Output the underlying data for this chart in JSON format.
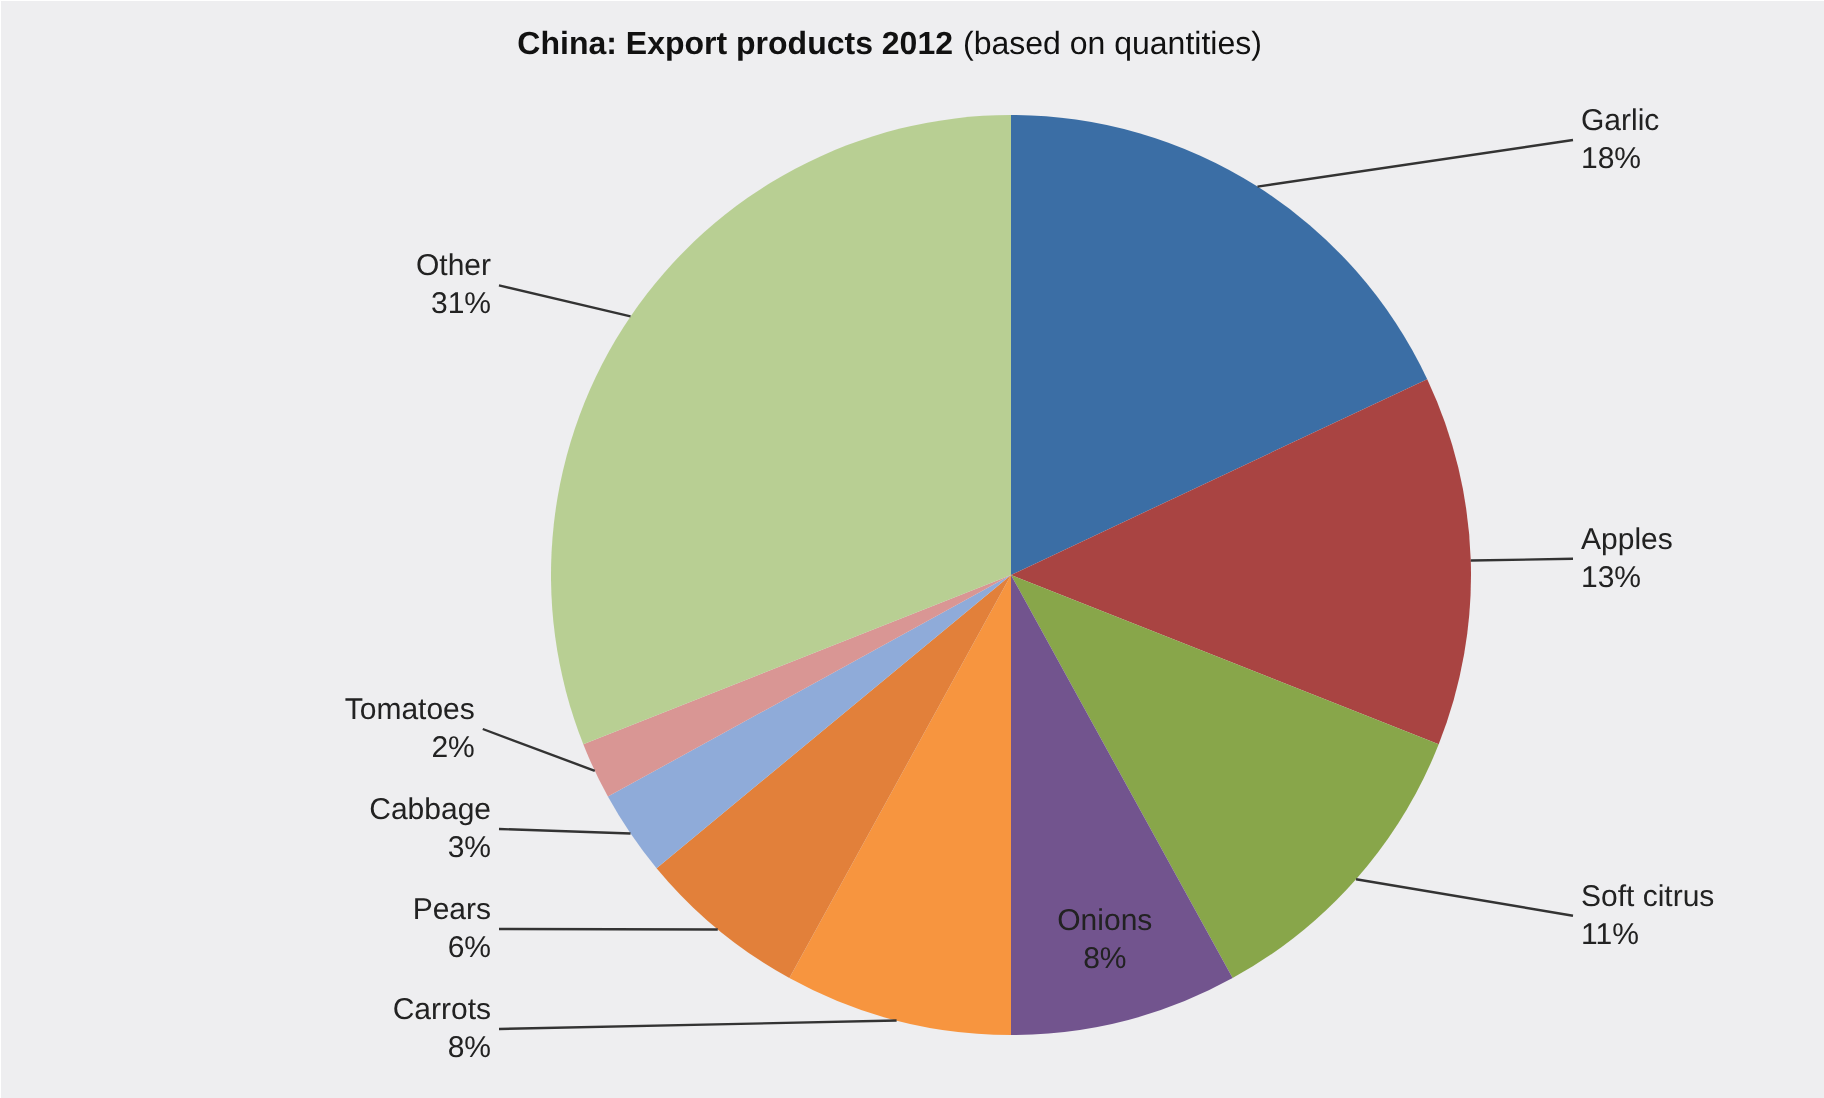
{
  "chart_data": {
    "type": "pie",
    "title": "China: Export products 2012",
    "subtitle": "(based on quantities)",
    "categories": [
      "Garlic",
      "Apples",
      "Soft citrus",
      "Onions",
      "Carrots",
      "Pears",
      "Cabbage",
      "Tomatoes",
      "Other"
    ],
    "values": [
      18,
      13,
      11,
      8,
      8,
      6,
      3,
      2,
      31
    ],
    "value_labels": [
      "18%",
      "13%",
      "11%",
      "8%",
      "8%",
      "6%",
      "3%",
      "2%",
      "31%"
    ],
    "colors": [
      "#3b6ea5",
      "#a94442",
      "#88a64a",
      "#72548e",
      "#f7953f",
      "#e2803a",
      "#8fabd9",
      "#d99694",
      "#b8cf93"
    ]
  }
}
